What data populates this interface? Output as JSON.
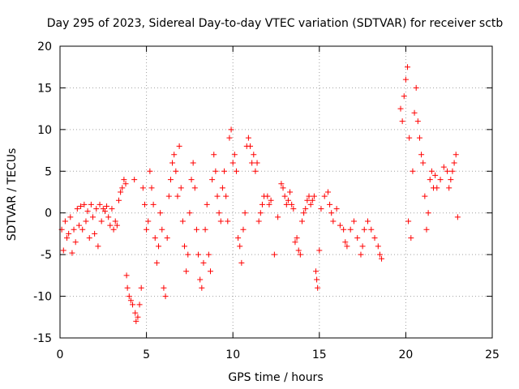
{
  "chart_data": {
    "type": "scatter",
    "title": "Day 295 of 2023, Sidereal Day-to-day VTEC variation (SDTVAR) for receiver sctb",
    "xlabel": "GPS time / hours",
    "ylabel": "SDTVAR / TECUs",
    "xlim": [
      0,
      25
    ],
    "ylim": [
      -15,
      20
    ],
    "xticks": [
      0,
      5,
      10,
      15,
      20,
      25
    ],
    "yticks": [
      -15,
      -10,
      -5,
      0,
      5,
      10,
      15,
      20
    ],
    "grid": true,
    "marker": "plus",
    "series": [
      {
        "name": "SDTVAR",
        "color": "#ff0000",
        "points": [
          [
            0.1,
            -2
          ],
          [
            0.2,
            -4.5
          ],
          [
            0.3,
            -1
          ],
          [
            0.4,
            -3
          ],
          [
            0.5,
            -2.5
          ],
          [
            0.6,
            -0.5
          ],
          [
            0.7,
            -4.8
          ],
          [
            0.8,
            -2
          ],
          [
            0.9,
            -3.5
          ],
          [
            1.0,
            0.5
          ],
          [
            1.1,
            -1.5
          ],
          [
            1.2,
            0.8
          ],
          [
            1.3,
            -2
          ],
          [
            1.4,
            1.0
          ],
          [
            1.5,
            -1
          ],
          [
            1.6,
            0.2
          ],
          [
            1.7,
            -3
          ],
          [
            1.8,
            1.0
          ],
          [
            1.9,
            -0.5
          ],
          [
            2.0,
            -2.5
          ],
          [
            2.1,
            0.5
          ],
          [
            2.2,
            -4
          ],
          [
            2.3,
            1.0
          ],
          [
            2.4,
            -1
          ],
          [
            2.5,
            0.5
          ],
          [
            2.6,
            0.2
          ],
          [
            2.7,
            0.8
          ],
          [
            2.8,
            -0.5
          ],
          [
            2.9,
            -1.5
          ],
          [
            3.0,
            0.5
          ],
          [
            3.1,
            -2
          ],
          [
            3.2,
            -1
          ],
          [
            3.3,
            -1.5
          ],
          [
            3.4,
            1.5
          ],
          [
            3.5,
            2.5
          ],
          [
            3.6,
            3
          ],
          [
            3.7,
            4
          ],
          [
            3.8,
            3.5
          ],
          [
            3.85,
            -7.5
          ],
          [
            3.9,
            -9
          ],
          [
            4.0,
            -10
          ],
          [
            4.1,
            -10.5
          ],
          [
            4.2,
            -11
          ],
          [
            4.3,
            4
          ],
          [
            4.35,
            -12
          ],
          [
            4.4,
            -13
          ],
          [
            4.5,
            -12.5
          ],
          [
            4.6,
            -11
          ],
          [
            4.7,
            -9
          ],
          [
            4.8,
            3
          ],
          [
            4.9,
            1
          ],
          [
            5.0,
            -2
          ],
          [
            5.1,
            -1
          ],
          [
            5.2,
            5
          ],
          [
            5.3,
            3
          ],
          [
            5.4,
            1
          ],
          [
            5.5,
            -3
          ],
          [
            5.6,
            -6
          ],
          [
            5.7,
            -4
          ],
          [
            5.8,
            0
          ],
          [
            5.9,
            -2
          ],
          [
            6.0,
            -9
          ],
          [
            6.1,
            -10
          ],
          [
            6.2,
            -3
          ],
          [
            6.3,
            2
          ],
          [
            6.4,
            4
          ],
          [
            6.5,
            6
          ],
          [
            6.6,
            7
          ],
          [
            6.7,
            5
          ],
          [
            6.8,
            2
          ],
          [
            6.9,
            8
          ],
          [
            7.0,
            3
          ],
          [
            7.1,
            -1
          ],
          [
            7.2,
            -4
          ],
          [
            7.3,
            -7
          ],
          [
            7.4,
            -5
          ],
          [
            7.5,
            0
          ],
          [
            7.6,
            4
          ],
          [
            7.7,
            6
          ],
          [
            7.8,
            3
          ],
          [
            7.9,
            -2
          ],
          [
            8.0,
            -5
          ],
          [
            8.1,
            -8
          ],
          [
            8.2,
            -9
          ],
          [
            8.3,
            -6
          ],
          [
            8.4,
            -2
          ],
          [
            8.5,
            1
          ],
          [
            8.6,
            -5
          ],
          [
            8.7,
            -7
          ],
          [
            8.8,
            4
          ],
          [
            8.9,
            7
          ],
          [
            9.0,
            5
          ],
          [
            9.1,
            2
          ],
          [
            9.2,
            0
          ],
          [
            9.3,
            -1
          ],
          [
            9.4,
            3
          ],
          [
            9.5,
            5
          ],
          [
            9.6,
            2
          ],
          [
            9.7,
            -1
          ],
          [
            9.8,
            9
          ],
          [
            9.9,
            10
          ],
          [
            10.0,
            6
          ],
          [
            10.1,
            7
          ],
          [
            10.2,
            5
          ],
          [
            10.3,
            -3
          ],
          [
            10.4,
            -4
          ],
          [
            10.5,
            -6
          ],
          [
            10.6,
            -2
          ],
          [
            10.7,
            0
          ],
          [
            10.8,
            8
          ],
          [
            10.9,
            9
          ],
          [
            11.0,
            8
          ],
          [
            11.1,
            6
          ],
          [
            11.2,
            7
          ],
          [
            11.3,
            5
          ],
          [
            11.4,
            6
          ],
          [
            11.5,
            -1
          ],
          [
            11.6,
            0
          ],
          [
            11.7,
            1
          ],
          [
            11.8,
            2
          ],
          [
            12.0,
            2
          ],
          [
            12.1,
            1
          ],
          [
            12.2,
            1.5
          ],
          [
            12.4,
            -5
          ],
          [
            12.6,
            -0.5
          ],
          [
            12.8,
            3.5
          ],
          [
            12.9,
            3
          ],
          [
            13.0,
            2
          ],
          [
            13.1,
            1
          ],
          [
            13.2,
            1.5
          ],
          [
            13.3,
            2.5
          ],
          [
            13.4,
            1
          ],
          [
            13.5,
            0.5
          ],
          [
            13.6,
            -3.5
          ],
          [
            13.7,
            -3
          ],
          [
            13.8,
            -4.5
          ],
          [
            13.9,
            -5
          ],
          [
            14.0,
            -1
          ],
          [
            14.1,
            0
          ],
          [
            14.2,
            0.5
          ],
          [
            14.3,
            1.5
          ],
          [
            14.4,
            2
          ],
          [
            14.5,
            1
          ],
          [
            14.6,
            1.5
          ],
          [
            14.7,
            2
          ],
          [
            14.8,
            -7
          ],
          [
            14.85,
            -8
          ],
          [
            14.9,
            -9
          ],
          [
            15.0,
            -4.5
          ],
          [
            15.1,
            0.5
          ],
          [
            15.3,
            2
          ],
          [
            15.5,
            2.5
          ],
          [
            15.6,
            1
          ],
          [
            15.7,
            0
          ],
          [
            15.8,
            -1
          ],
          [
            16.0,
            0.5
          ],
          [
            16.2,
            -1.5
          ],
          [
            16.4,
            -2
          ],
          [
            16.5,
            -3.5
          ],
          [
            16.6,
            -4
          ],
          [
            16.8,
            -2
          ],
          [
            17.0,
            -1
          ],
          [
            17.2,
            -3
          ],
          [
            17.4,
            -5
          ],
          [
            17.5,
            -4
          ],
          [
            17.6,
            -2
          ],
          [
            17.8,
            -1
          ],
          [
            18.0,
            -2
          ],
          [
            18.2,
            -3
          ],
          [
            18.4,
            -4
          ],
          [
            18.5,
            -5
          ],
          [
            18.6,
            -5.5
          ],
          [
            19.7,
            12.5
          ],
          [
            19.8,
            11
          ],
          [
            19.9,
            14
          ],
          [
            20.0,
            16
          ],
          [
            20.1,
            17.5
          ],
          [
            20.15,
            -1
          ],
          [
            20.2,
            9
          ],
          [
            20.3,
            -3
          ],
          [
            20.4,
            5
          ],
          [
            20.5,
            12
          ],
          [
            20.6,
            15
          ],
          [
            20.7,
            11
          ],
          [
            20.8,
            9
          ],
          [
            20.9,
            7
          ],
          [
            21.0,
            6
          ],
          [
            21.1,
            2
          ],
          [
            21.2,
            -2
          ],
          [
            21.3,
            0
          ],
          [
            21.4,
            4
          ],
          [
            21.5,
            5
          ],
          [
            21.6,
            3
          ],
          [
            21.7,
            4.5
          ],
          [
            21.8,
            3
          ],
          [
            22.0,
            4
          ],
          [
            22.2,
            5.5
          ],
          [
            22.4,
            5
          ],
          [
            22.5,
            3
          ],
          [
            22.6,
            4
          ],
          [
            22.7,
            5
          ],
          [
            22.8,
            6
          ],
          [
            22.9,
            7
          ],
          [
            23.0,
            -0.5
          ]
        ]
      }
    ]
  }
}
